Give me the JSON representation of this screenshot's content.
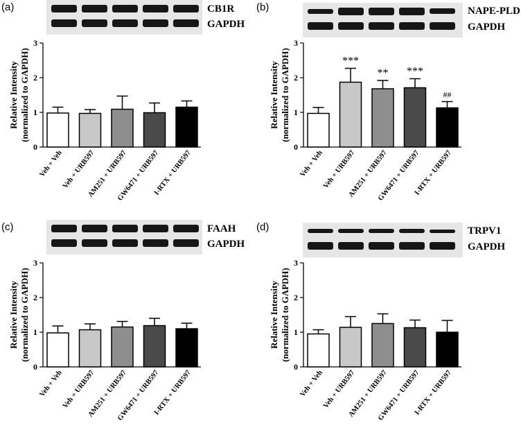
{
  "panels": [
    {
      "letter": "(a)",
      "blot_labels": [
        "CB1R",
        "GAPDH"
      ],
      "target_band_strength": [
        1.0,
        1.0,
        1.0,
        1.0,
        1.0
      ],
      "chart_data": {
        "type": "bar",
        "categories": [
          "Veh + Veh",
          "Veh + URB597",
          "AM251 + URB597",
          "GW6471 + URB597",
          "I-RTX + URB597"
        ],
        "values": [
          0.98,
          0.97,
          1.09,
          0.99,
          1.15
        ],
        "errors": [
          0.17,
          0.11,
          0.38,
          0.28,
          0.18
        ],
        "annotations": [
          "",
          "",
          "",
          "",
          ""
        ],
        "bar_colors": [
          "#ffffff",
          "#c8c8c8",
          "#8e8e8e",
          "#4a4a4a",
          "#000000"
        ],
        "ylabel": [
          "Relative Intensity",
          "(normalized to GAPDH)"
        ],
        "ylim": [
          0,
          3
        ],
        "yticks": [
          "0",
          "1",
          "2",
          "3"
        ]
      }
    },
    {
      "letter": "(b)",
      "blot_labels": [
        "NAPE-PLD",
        "GAPDH"
      ],
      "target_band_strength": [
        0.6,
        1.0,
        1.0,
        1.0,
        0.7
      ],
      "chart_data": {
        "type": "bar",
        "categories": [
          "Veh + Veh",
          "Veh + URB597",
          "AM251 + URB597",
          "GW6471 + URB597",
          "I-RTX + URB597"
        ],
        "values": [
          0.97,
          1.87,
          1.68,
          1.71,
          1.13
        ],
        "errors": [
          0.17,
          0.4,
          0.24,
          0.26,
          0.18
        ],
        "annotations": [
          "",
          "***",
          "**",
          "***",
          "##"
        ],
        "bar_colors": [
          "#ffffff",
          "#c8c8c8",
          "#8e8e8e",
          "#4a4a4a",
          "#000000"
        ],
        "ylabel": [
          "Relative Intensity",
          "(normalized to GAPDH)"
        ],
        "ylim": [
          0,
          3
        ],
        "yticks": [
          "0",
          "1",
          "2",
          "3"
        ]
      }
    },
    {
      "letter": "(c)",
      "blot_labels": [
        "FAAH",
        "GAPDH"
      ],
      "target_band_strength": [
        1.0,
        1.0,
        1.0,
        1.0,
        1.0
      ],
      "chart_data": {
        "type": "bar",
        "categories": [
          "Veh + Veh",
          "Veh + URB597",
          "AM251 + URB597",
          "GW6471 + URB597",
          "I-RTX + URB597"
        ],
        "values": [
          0.98,
          1.07,
          1.15,
          1.19,
          1.1
        ],
        "errors": [
          0.2,
          0.17,
          0.16,
          0.21,
          0.16
        ],
        "annotations": [
          "",
          "",
          "",
          "",
          ""
        ],
        "bar_colors": [
          "#ffffff",
          "#c8c8c8",
          "#8e8e8e",
          "#4a4a4a",
          "#000000"
        ],
        "ylabel": [
          "Relative Intensity",
          "(normalized to GAPDH)"
        ],
        "ylim": [
          0,
          3
        ],
        "yticks": [
          "0",
          "1",
          "2",
          "3"
        ]
      }
    },
    {
      "letter": "(d)",
      "blot_labels": [
        "TRPV1",
        "GAPDH"
      ],
      "target_band_strength": [
        0.55,
        0.55,
        0.55,
        0.55,
        0.45
      ],
      "chart_data": {
        "type": "bar",
        "categories": [
          "Veh + Veh",
          "Veh + URB597",
          "AM251 + URB597",
          "GW6471 + URB597",
          "I-RTX + URB597"
        ],
        "values": [
          0.95,
          1.14,
          1.25,
          1.13,
          1.0
        ],
        "errors": [
          0.12,
          0.31,
          0.28,
          0.22,
          0.34
        ],
        "annotations": [
          "",
          "",
          "",
          "",
          ""
        ],
        "bar_colors": [
          "#ffffff",
          "#c8c8c8",
          "#8e8e8e",
          "#4a4a4a",
          "#000000"
        ],
        "ylabel": [
          "Relative Intensity",
          "(normalized to GAPDH)"
        ],
        "ylim": [
          0,
          3
        ],
        "yticks": [
          "0",
          "1",
          "2",
          "3"
        ]
      }
    }
  ]
}
